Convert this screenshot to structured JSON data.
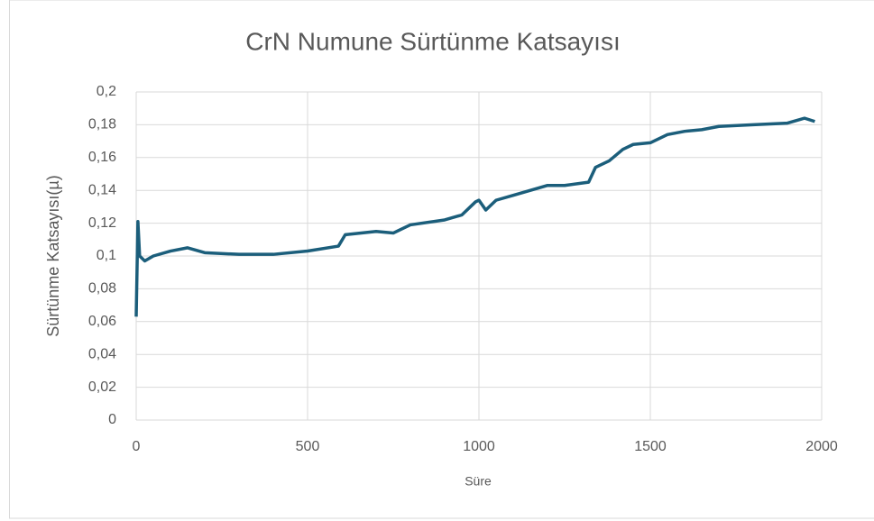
{
  "chart_data": {
    "type": "line",
    "title": "CrN Numune Sürtünme Katsayısı",
    "xlabel": "Süre",
    "ylabel": "Sürtünme Katsayısı(µ)",
    "color": "#1b5e7b",
    "grid": true,
    "x": [
      0,
      5,
      10,
      25,
      50,
      100,
      150,
      200,
      300,
      400,
      500,
      590,
      610,
      700,
      750,
      800,
      900,
      950,
      990,
      1000,
      1020,
      1050,
      1100,
      1150,
      1200,
      1250,
      1320,
      1340,
      1380,
      1420,
      1450,
      1500,
      1550,
      1600,
      1650,
      1700,
      1800,
      1900,
      1950,
      1980
    ],
    "values": [
      0.063,
      0.121,
      0.1,
      0.097,
      0.1,
      0.103,
      0.105,
      0.102,
      0.101,
      0.101,
      0.103,
      0.106,
      0.113,
      0.115,
      0.114,
      0.119,
      0.122,
      0.125,
      0.133,
      0.134,
      0.128,
      0.134,
      0.137,
      0.14,
      0.143,
      0.143,
      0.145,
      0.154,
      0.158,
      0.165,
      0.168,
      0.169,
      0.174,
      0.176,
      0.177,
      0.179,
      0.18,
      0.181,
      0.184,
      0.182
    ],
    "xlim": [
      0,
      2000
    ],
    "xticks": [
      0,
      500,
      1000,
      1500,
      2000
    ],
    "ylim": [
      0,
      0.2
    ],
    "yticks": [
      0,
      {
        "value": 0.02,
        "label": "0,02"
      },
      {
        "value": 0.04,
        "label": "0,04"
      },
      {
        "value": 0.06,
        "label": "0,06"
      },
      {
        "value": 0.08,
        "label": "0,08"
      },
      {
        "value": 0.1,
        "label": "0,1"
      },
      {
        "value": 0.12,
        "label": "0,12"
      },
      {
        "value": 0.14,
        "label": "0,14"
      },
      {
        "value": 0.16,
        "label": "0,16"
      },
      {
        "value": 0.18,
        "label": "0,18"
      },
      {
        "value": 0.2,
        "label": "0,2"
      }
    ]
  }
}
